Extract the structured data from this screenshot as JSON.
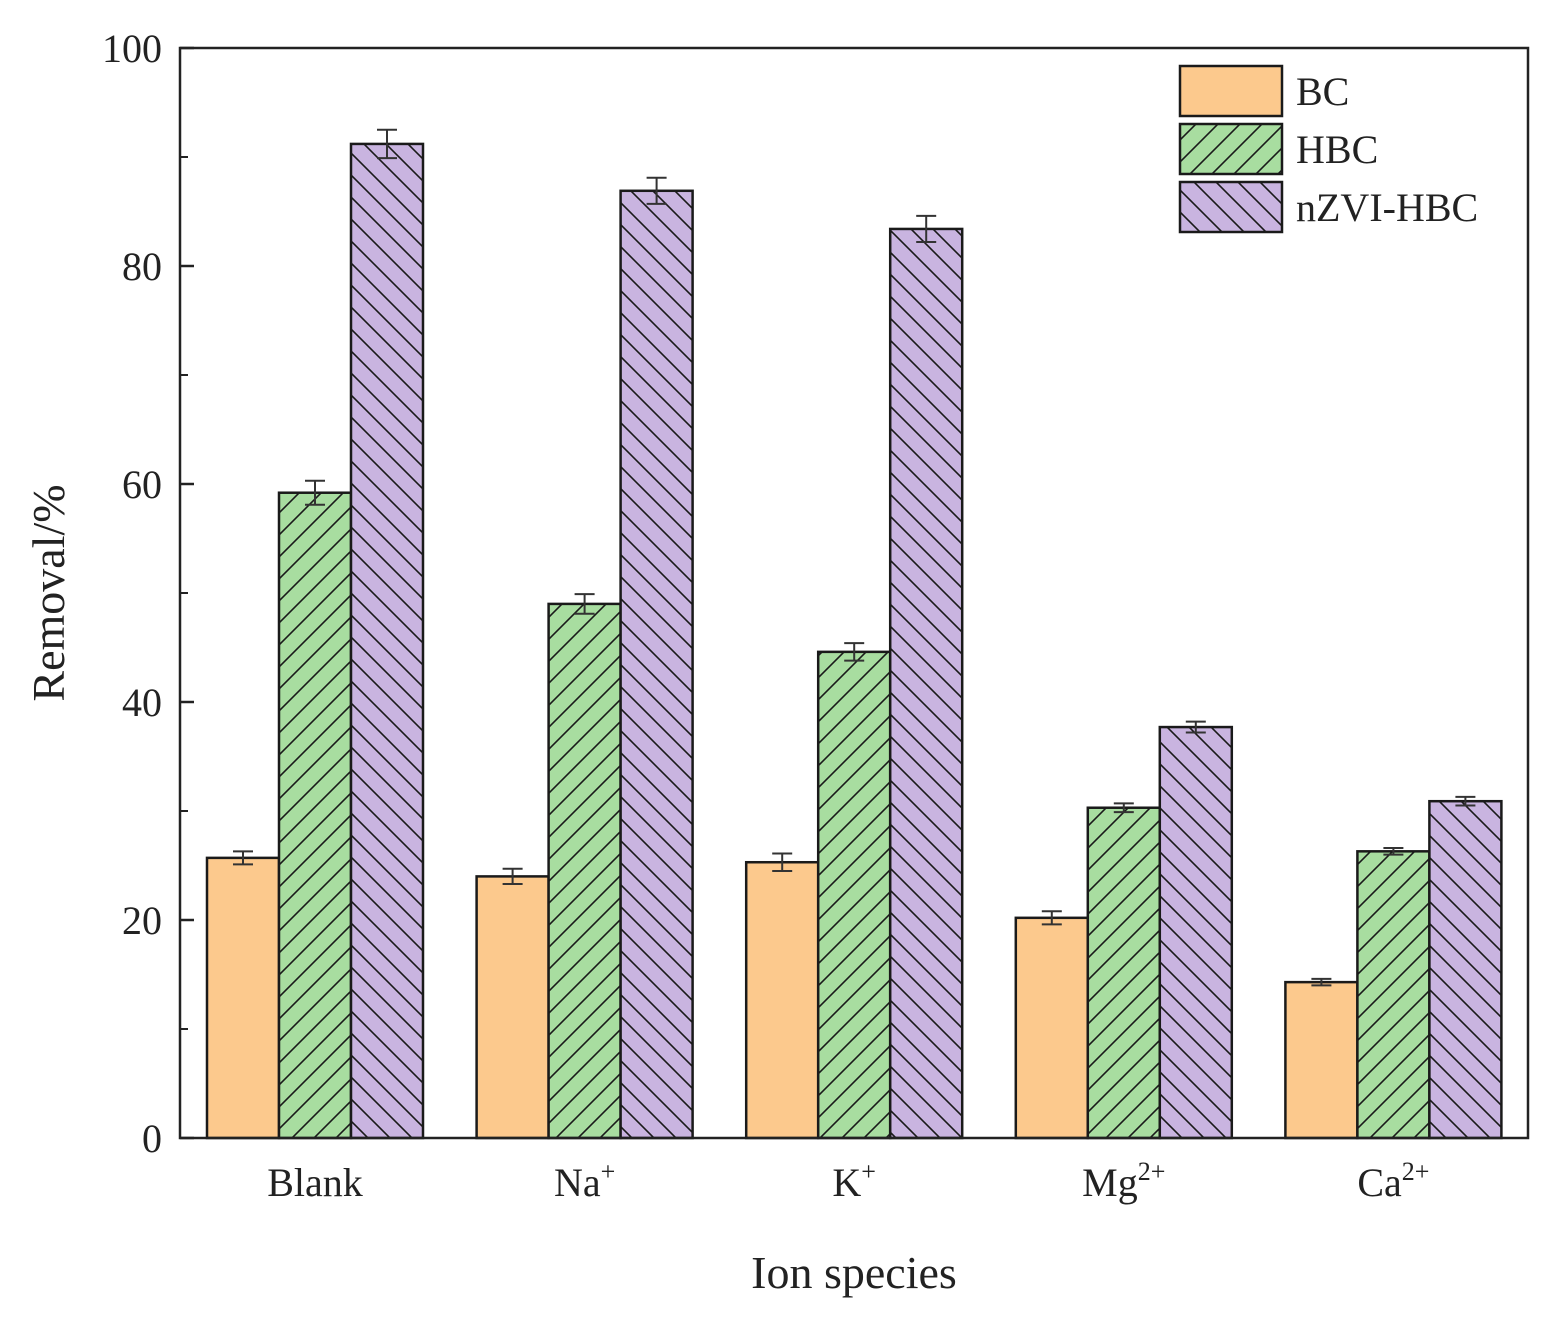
{
  "chart_data": {
    "type": "bar",
    "title": "",
    "xlabel": "Ion species",
    "ylabel": "Removal/%",
    "ylim": [
      0,
      100
    ],
    "yticks": [
      0,
      20,
      40,
      60,
      80,
      100
    ],
    "categories": [
      {
        "base": "Blank",
        "sup": ""
      },
      {
        "base": "Na",
        "sup": "+"
      },
      {
        "base": "K",
        "sup": "+"
      },
      {
        "base": "Mg",
        "sup": "2+"
      },
      {
        "base": "Ca",
        "sup": "2+"
      }
    ],
    "series": [
      {
        "name": "BC",
        "color": "#FCC98D",
        "pattern": "none",
        "values": [
          25.7,
          24.0,
          25.3,
          20.2,
          14.3
        ],
        "errors": [
          0.6,
          0.7,
          0.8,
          0.6,
          0.3
        ]
      },
      {
        "name": "HBC",
        "color": "#A8DDA0",
        "pattern": "forward-diagonal",
        "values": [
          59.2,
          49.0,
          44.6,
          30.3,
          26.3
        ],
        "errors": [
          1.1,
          0.9,
          0.8,
          0.4,
          0.3
        ]
      },
      {
        "name": "nZVI-HBC",
        "color": "#C9B4E0",
        "pattern": "backward-diagonal",
        "values": [
          91.2,
          86.9,
          83.4,
          37.7,
          30.9
        ],
        "errors": [
          1.3,
          1.2,
          1.2,
          0.5,
          0.4
        ]
      }
    ],
    "legend_position": "top-right",
    "grid": false
  }
}
